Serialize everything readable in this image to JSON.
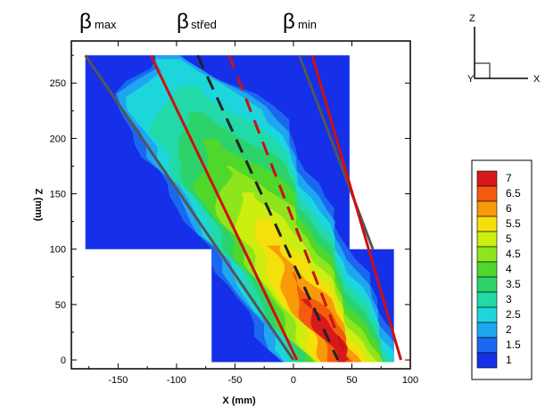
{
  "chart_data": {
    "type": "heatmap",
    "xlabel": "X (mm)",
    "ylabel": "Z (mm)",
    "xlim": [
      -190,
      100
    ],
    "ylim": [
      -8,
      288
    ],
    "x_ticks": [
      "-150",
      "-100",
      "-50",
      "0",
      "50",
      "100"
    ],
    "x_tick_values": [
      -150,
      -100,
      -50,
      0,
      50,
      100
    ],
    "y_ticks": [
      "0",
      "50",
      "100",
      "150",
      "200",
      "250"
    ],
    "y_tick_values": [
      0,
      50,
      100,
      150,
      200,
      250
    ],
    "domain_regions": [
      {
        "x": [
          -178,
          48
        ],
        "z": [
          100,
          275
        ]
      },
      {
        "x": [
          -70,
          86
        ],
        "z": [
          -2,
          100
        ]
      }
    ],
    "field": {
      "description_colorscale_note": "",
      "jet_core": {
        "x_at_z0": 42,
        "x_at_z275": -110,
        "width_mm": 55
      }
    },
    "beta_lines": [
      {
        "label": "β",
        "subscript": "max",
        "style": "solid",
        "color": "#555555",
        "points": [
          [
            -178,
            275
          ],
          [
            0,
            0
          ]
        ]
      },
      {
        "label": "β",
        "subscript": "střed",
        "style": "solid",
        "color": "#cc1111",
        "points": [
          [
            -122,
            275
          ],
          [
            3,
            0
          ]
        ]
      },
      {
        "label": "",
        "subscript": "",
        "style": "dashed",
        "color": "#222222",
        "points": [
          [
            -82,
            275
          ],
          [
            38,
            0
          ]
        ]
      },
      {
        "label": "",
        "subscript": "",
        "style": "dashed",
        "color": "#cc1111",
        "points": [
          [
            -55,
            275
          ],
          [
            46,
            0
          ]
        ]
      },
      {
        "label": "β",
        "subscript": "min",
        "style": "solid",
        "color": "#555555",
        "points": [
          [
            5,
            275
          ],
          [
            68,
            100
          ]
        ]
      },
      {
        "label": "",
        "subscript": "",
        "style": "solid",
        "color": "#cc1111",
        "points": [
          [
            16,
            275
          ],
          [
            92,
            0
          ]
        ]
      }
    ],
    "legend": {
      "position": "right",
      "levels": [
        "7",
        "6.5",
        "6",
        "5.5",
        "5",
        "4.5",
        "4",
        "3.5",
        "3",
        "2.5",
        "2",
        "1.5",
        "1"
      ],
      "colors": [
        "#d7191c",
        "#f25c0c",
        "#f99a0a",
        "#f4e00c",
        "#ccee10",
        "#8ee51c",
        "#4fd72c",
        "#2cd36a",
        "#22d9a8",
        "#1cd6dc",
        "#1ea6f0",
        "#1a68f0",
        "#1530e8"
      ]
    },
    "grid": false
  },
  "labels": {
    "beta_max": "β",
    "beta_max_sub": "max",
    "beta_stred": "β",
    "beta_stred_sub": "střed",
    "beta_min": "β",
    "beta_min_sub": "min"
  },
  "triad": {
    "z_label": "Z",
    "x_label": "X",
    "y_label": "Y"
  },
  "colors": {
    "background": "#ffffff",
    "domain_fill": "#1530e8",
    "frame": "#000000"
  }
}
